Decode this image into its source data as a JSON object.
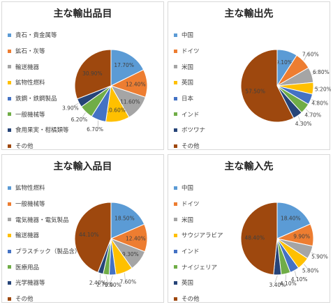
{
  "colors": [
    "#5B9BD5",
    "#ED7D31",
    "#A5A5A5",
    "#FFC000",
    "#4472C4",
    "#70AD47",
    "#264478",
    "#9E480E"
  ],
  "chart_data": [
    {
      "type": "pie",
      "title": "主な輸出品目",
      "categories": [
        "貴石・貴金属等",
        "鉱石・灰等",
        "輸送機器",
        "鉱物性燃料",
        "鉄鋼・鉄鋼製品",
        "一般機械等",
        "食用果実・柑橘類等",
        "その他"
      ],
      "values": [
        17.7,
        12.4,
        11.6,
        10.6,
        6.7,
        6.2,
        3.9,
        30.9
      ],
      "labels": [
        "17.70%",
        "12.40%",
        "11.60%",
        "10.60%",
        "6.70%",
        "6.20%",
        "3.90%",
        "30.90%"
      ],
      "legend_position": "left"
    },
    {
      "type": "pie",
      "title": "主な輸出先",
      "categories": [
        "中国",
        "ドイツ",
        "米国",
        "英国",
        "日本",
        "インド",
        "ボツワナ",
        "その他"
      ],
      "values": [
        9.1,
        7.6,
        6.8,
        5.2,
        4.8,
        4.7,
        4.3,
        57.5
      ],
      "labels": [
        "9.10%",
        "7.60%",
        "6.80%",
        "5.20%",
        "4.80%",
        "4.70%",
        "4.30%",
        "57.50%"
      ],
      "legend_position": "left"
    },
    {
      "type": "pie",
      "title": "主な輸入品目",
      "categories": [
        "鉱物性燃料",
        "一般機械等",
        "電気機器・電気製品",
        "輸送機器",
        "プラスチック（製品含）",
        "医療用品",
        "光学機器等",
        "その他"
      ],
      "values": [
        18.5,
        12.4,
        9.3,
        7.6,
        3.0,
        2.7,
        2.4,
        44.1
      ],
      "labels": [
        "18.50%",
        "12.40%",
        "9.30%",
        "7.60%",
        "3.00%",
        "2.70%",
        "2.40%",
        "44.10%"
      ],
      "legend_position": "left"
    },
    {
      "type": "pie",
      "title": "主な輸入先",
      "categories": [
        "中国",
        "ドイツ",
        "米国",
        "サウジアラビア",
        "インド",
        "ナイジェリア",
        "英国",
        "その他"
      ],
      "values": [
        18.4,
        9.9,
        5.9,
        5.8,
        4.1,
        4.1,
        3.4,
        48.4
      ],
      "labels": [
        "18.40%",
        "9.90%",
        "5.90%",
        "5.80%",
        "4.10%",
        "4.10%",
        "3.40%",
        "48.40%"
      ],
      "legend_position": "left"
    }
  ]
}
